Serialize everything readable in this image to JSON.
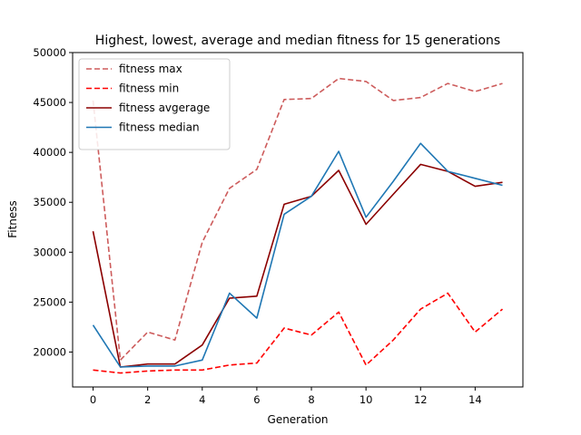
{
  "chart_data": {
    "type": "line",
    "title": "Highest, lowest, average and median fitness for 15 generations",
    "xlabel": "Generation",
    "ylabel": "Fitness",
    "xlim": [
      -0.75,
      15.75
    ],
    "ylim": [
      16500,
      50000
    ],
    "xticks": [
      0,
      2,
      4,
      6,
      8,
      10,
      12,
      14
    ],
    "yticks": [
      20000,
      25000,
      30000,
      35000,
      40000,
      45000,
      50000
    ],
    "grid": false,
    "legend_position": "upper-left",
    "x": [
      0,
      1,
      2,
      3,
      4,
      5,
      6,
      7,
      8,
      9,
      10,
      11,
      12,
      13,
      14,
      15
    ],
    "series": [
      {
        "name": "fitness max",
        "color": "#cd5c5c",
        "style": "dashed",
        "values": [
          45200,
          19200,
          22000,
          21200,
          31000,
          36400,
          38300,
          45300,
          45400,
          47400,
          47100,
          45200,
          45500,
          46900,
          46100,
          46900
        ]
      },
      {
        "name": "fitness min",
        "color": "#ff0000",
        "style": "dashed",
        "values": [
          18200,
          17900,
          18100,
          18200,
          18200,
          18700,
          18900,
          22400,
          21700,
          24000,
          18700,
          21200,
          24300,
          25900,
          22000,
          24300
        ]
      },
      {
        "name": "fitness avgerage",
        "color": "#8b0000",
        "style": "solid",
        "values": [
          32100,
          18500,
          18800,
          18800,
          20700,
          25400,
          25600,
          34800,
          35600,
          38200,
          32800,
          35800,
          38800,
          38100,
          36600,
          37000
        ]
      },
      {
        "name": "fitness median",
        "color": "#1f77b4",
        "style": "solid",
        "values": [
          22700,
          18500,
          18600,
          18600,
          19200,
          25900,
          23400,
          33800,
          35600,
          40100,
          33500,
          37100,
          40900,
          38100,
          37400,
          36700
        ]
      }
    ]
  }
}
